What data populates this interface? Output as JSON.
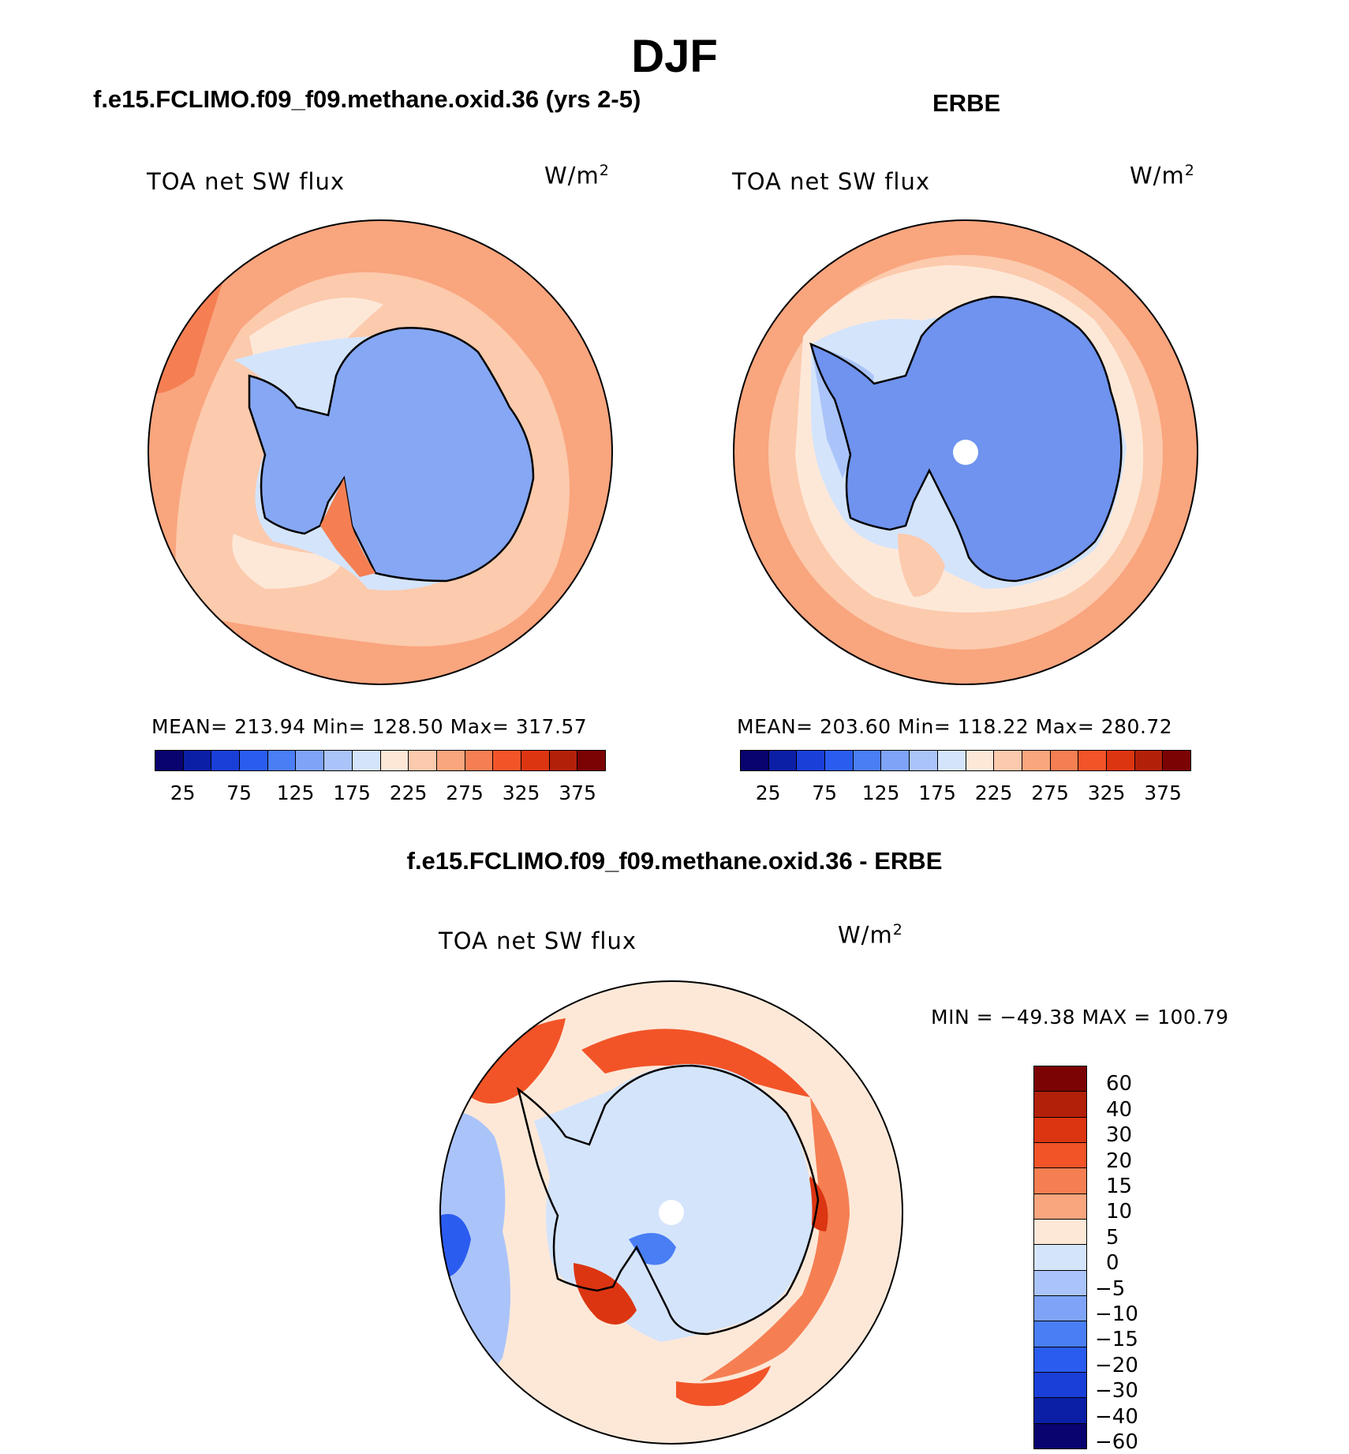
{
  "figure": {
    "season_title": "DJF",
    "left_subtitle": "f.e15.FCLIMO.f09_f09.methane.oxid.36 (yrs 2-5)",
    "right_subtitle": "ERBE",
    "diff_subtitle": "f.e15.FCLIMO.f09_f09.methane.oxid.36 - ERBE"
  },
  "panels": {
    "model": {
      "variable": "TOA net SW flux",
      "units": "W/m",
      "units_exp": "2",
      "stats": "MEAN= 213.94   Min= 128.50   Max= 317.57"
    },
    "obs": {
      "variable": "TOA net SW flux",
      "units": "W/m",
      "units_exp": "2",
      "stats": "MEAN= 203.60   Min= 118.22   Max= 280.72"
    },
    "diff": {
      "variable": "TOA net SW flux",
      "units": "W/m",
      "units_exp": "2",
      "minmax": "MIN = −49.38 MAX = 100.79"
    }
  },
  "colorbar_abs": {
    "colors": [
      "#08036e",
      "#0a1fa6",
      "#1a3fd8",
      "#2b5cf0",
      "#4a7ef5",
      "#7fa3f7",
      "#aac4f9",
      "#d4e4fb",
      "#fde8d8",
      "#fccaad",
      "#f9a57e",
      "#f57f53",
      "#f25428",
      "#dc3512",
      "#b3200a",
      "#7c0303"
    ],
    "labels": [
      "25",
      "75",
      "125",
      "175",
      "225",
      "275",
      "325",
      "375"
    ]
  },
  "colorbar_diff": {
    "colors": [
      "#7c0303",
      "#b3200a",
      "#dc3512",
      "#f25428",
      "#f57f53",
      "#f9a57e",
      "#fde8d8",
      "#d4e4fb",
      "#aac4f9",
      "#7fa3f7",
      "#4a7ef5",
      "#2b5cf0",
      "#1a3fd8",
      "#0a1fa6",
      "#08036e"
    ],
    "labels": [
      "60",
      "40",
      "30",
      "20",
      "15",
      "10",
      "5",
      "0",
      "−5",
      "−10",
      "−15",
      "−20",
      "−30",
      "−40",
      "−60"
    ]
  },
  "colors": {
    "land_model": "#86a7f3",
    "land_obs": "#6f93ee",
    "ocean_light": "#fde8d8",
    "ocean_mid": "#fccaad",
    "ocean_dark": "#f9a57e",
    "ocean_red": "#f57f53",
    "ice_light": "#d4e4fb",
    "ice_mid": "#aac4f9"
  }
}
